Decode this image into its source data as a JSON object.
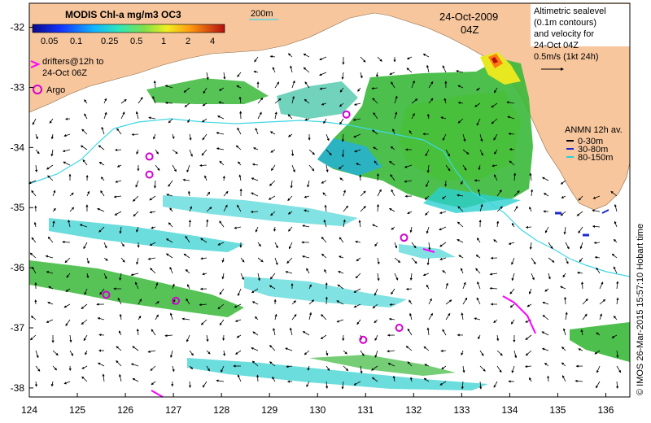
{
  "colorbar": {
    "title": "MODIS Chl-a mg/m3 OC3",
    "ticks": [
      "0.05",
      "0.1",
      "0.25",
      "0.5",
      "1",
      "2",
      "4"
    ]
  },
  "date": "24-Oct-2009",
  "time": "04Z",
  "scale_label": "200m",
  "altimetry_note": [
    "Altimetric sealevel",
    "(0.1m contours)",
    "and velocity for",
    "24-Oct 04Z",
    "0.5m/s (1kt 24h)"
  ],
  "drifter_note": [
    "drifters@12h to",
    "24-Oct 06Z"
  ],
  "argo_label": "Argo",
  "anmn_legend": {
    "title": "ANMN 12h av.",
    "items": [
      {
        "label": "0-30m",
        "color": "#000000"
      },
      {
        "label": "30-80m",
        "color": "#1c2ad0"
      },
      {
        "label": "80-150m",
        "color": "#22d4d4"
      }
    ]
  },
  "credit": "© IMOS 26-Mar-2015 15:57:10 Hobart time",
  "axes": {
    "x_ticks": [
      "124",
      "125",
      "126",
      "127",
      "128",
      "129",
      "130",
      "131",
      "132",
      "133",
      "134",
      "135",
      "136"
    ],
    "y_ticks": [
      "-32",
      "-33",
      "-34",
      "-35",
      "-36",
      "-37",
      "-38"
    ]
  },
  "colors": {
    "land": "#f7c69d",
    "shelf_contour": "#3fd6e6",
    "argo": "#d400d4",
    "drifter": "#ff00ff"
  },
  "argo_floats": [
    {
      "lon": 126.5,
      "lat": -34.15
    },
    {
      "lon": 126.5,
      "lat": -34.45
    },
    {
      "lon": 130.6,
      "lat": -33.45
    },
    {
      "lon": 131.8,
      "lat": -35.5
    },
    {
      "lon": 125.6,
      "lat": -36.45
    },
    {
      "lon": 127.05,
      "lat": -36.55
    },
    {
      "lon": 131.7,
      "lat": -37.0
    },
    {
      "lon": 130.95,
      "lat": -37.2
    }
  ]
}
